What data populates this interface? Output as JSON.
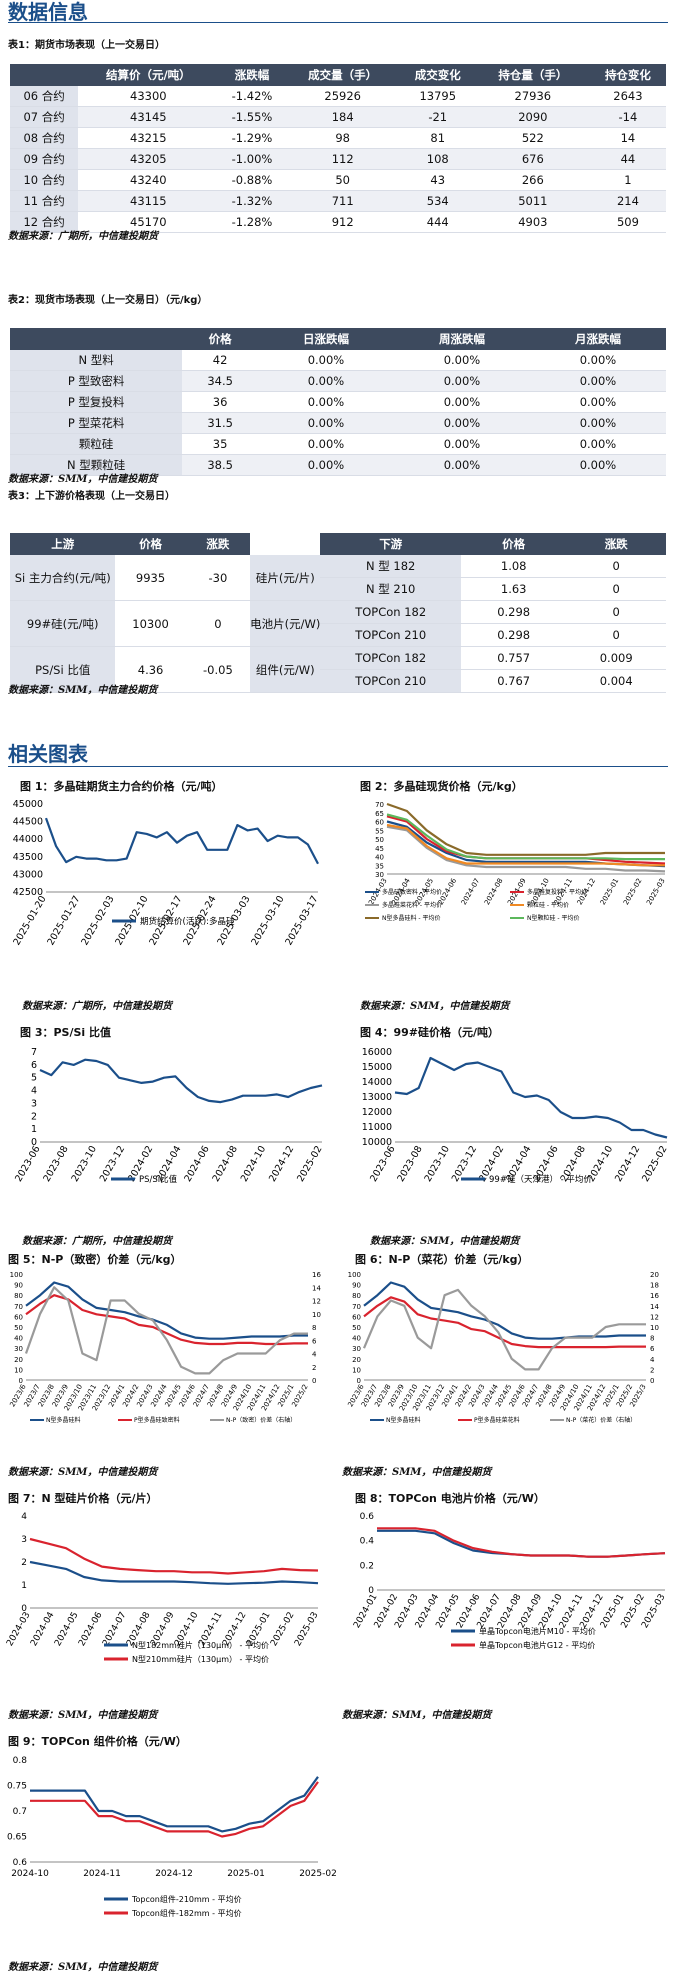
{
  "section1_title": "数据信息",
  "table1": {
    "caption": "表1：期货市场表现（上一交易日）",
    "headers": [
      "",
      "结算价（元/吨）",
      "涨跌幅",
      "成交量（手）",
      "成交变化",
      "持仓量（手）",
      "持仓变化"
    ],
    "rows": [
      [
        "06 合约",
        "43300",
        "-1.42%",
        "25926",
        "13795",
        "27936",
        "2643"
      ],
      [
        "07 合约",
        "43145",
        "-1.55%",
        "184",
        "-21",
        "2090",
        "-14"
      ],
      [
        "08 合约",
        "43215",
        "-1.29%",
        "98",
        "81",
        "522",
        "14"
      ],
      [
        "09 合约",
        "43205",
        "-1.00%",
        "112",
        "108",
        "676",
        "44"
      ],
      [
        "10 合约",
        "43240",
        "-0.88%",
        "50",
        "43",
        "266",
        "1"
      ],
      [
        "11 合约",
        "43115",
        "-1.32%",
        "711",
        "534",
        "5011",
        "214"
      ],
      [
        "12 合约",
        "45170",
        "-1.28%",
        "912",
        "444",
        "4903",
        "509"
      ]
    ],
    "source": "数据来源：广期所，中信建投期货"
  },
  "table2": {
    "caption": "表2：现货市场表现（上一交易日）（元/kg）",
    "headers": [
      "",
      "价格",
      "日涨跌幅",
      "周涨跌幅",
      "月涨跌幅"
    ],
    "rows": [
      [
        "N 型料",
        "42",
        "0.00%",
        "0.00%",
        "0.00%"
      ],
      [
        "P 型致密料",
        "34.5",
        "0.00%",
        "0.00%",
        "0.00%"
      ],
      [
        "P 型复投料",
        "36",
        "0.00%",
        "0.00%",
        "0.00%"
      ],
      [
        "P 型菜花料",
        "31.5",
        "0.00%",
        "0.00%",
        "0.00%"
      ],
      [
        "颗粒硅",
        "35",
        "0.00%",
        "0.00%",
        "0.00%"
      ],
      [
        "N 型颗粒硅",
        "38.5",
        "0.00%",
        "0.00%",
        "0.00%"
      ]
    ],
    "source": "数据来源：SMM，中信建投期货"
  },
  "table3": {
    "caption": "表3：上下游价格表现（上一交易日）",
    "headers": [
      "上游",
      "价格",
      "涨跌",
      "",
      "下游",
      "价格",
      "涨跌"
    ],
    "upstream": [
      {
        "name": "Si 主力合约(元/吨)",
        "price": "9935",
        "change": "-30"
      },
      {
        "name": "99#硅(元/吨)",
        "price": "10300",
        "change": "0"
      },
      {
        "name": "PS/Si 比值",
        "price": "4.36",
        "change": "-0.05"
      }
    ],
    "downstream": [
      {
        "group": "硅片(元/片)",
        "items": [
          [
            "N 型 182",
            "1.08",
            "0"
          ],
          [
            "N 型 210",
            "1.63",
            "0"
          ]
        ]
      },
      {
        "group": "电池片(元/W)",
        "items": [
          [
            "TOPCon 182",
            "0.298",
            "0"
          ],
          [
            "TOPCon 210",
            "0.298",
            "0"
          ]
        ]
      },
      {
        "group": "组件(元/W)",
        "items": [
          [
            "TOPCon 182",
            "0.757",
            "0.009"
          ],
          [
            "TOPCon 210",
            "0.767",
            "0.004"
          ]
        ]
      }
    ],
    "source": "数据来源：SMM，中信建投期货"
  },
  "section2_title": "相关图表",
  "figures": {
    "f1": {
      "title": "图 1：多晶硅期货主力合约价格（元/吨）",
      "source": "数据来源：广期所，中信建投期货"
    },
    "f2": {
      "title": "图 2：多晶硅现货价格（元/kg）",
      "source": "数据来源：SMM，中信建投期货"
    },
    "f3": {
      "title": "图 3：PS/Si 比值",
      "source": "数据来源：广期所，中信建投期货"
    },
    "f4": {
      "title": "图 4：99#硅价格（元/吨）",
      "source": "数据来源：SMM，中信建投期货"
    },
    "f5": {
      "title": "图 5：N-P（致密）价差（元/kg）",
      "source": "数据来源：SMM，中信建投期货"
    },
    "f6": {
      "title": "图 6：N-P（菜花）价差（元/kg）",
      "source": "数据来源：SMM，中信建投期货"
    },
    "f7": {
      "title": "图 7：N 型硅片价格（元/片）",
      "source": "数据来源：SMM，中信建投期货"
    },
    "f8": {
      "title": "图 8：TOPCon 电池片价格（元/W）",
      "source": "数据来源：SMM，中信建投期货"
    },
    "f9": {
      "title": "图 9：TOPCon 组件价格（元/W）",
      "source": "数据来源：SMM，中信建投期货"
    }
  },
  "chart_data": [
    {
      "id": "c1",
      "type": "line",
      "ylim": [
        42500,
        45000
      ],
      "yticks": [
        42500,
        43000,
        43500,
        44000,
        44500,
        45000
      ],
      "xticks": [
        "2025-01-20",
        "2025-01-27",
        "2025-02-03",
        "2025-02-10",
        "2025-02-17",
        "2025-02-24",
        "2025-03-03",
        "2025-03-10",
        "2025-03-17"
      ],
      "series": [
        {
          "name": "期货结算价(活跃):多晶硅",
          "color": "#1b4f8a",
          "values": [
            44600,
            43800,
            43350,
            43500,
            43450,
            43450,
            43400,
            43400,
            43450,
            44200,
            44150,
            44050,
            44200,
            43900,
            44100,
            44200,
            43700,
            43700,
            43700,
            44400,
            44250,
            44300,
            43950,
            44100,
            44050,
            44050,
            43850,
            43300
          ]
        }
      ]
    },
    {
      "id": "c2",
      "type": "line",
      "ylim": [
        30,
        70
      ],
      "yticks": [
        30,
        35,
        40,
        45,
        50,
        55,
        60,
        65,
        70
      ],
      "xticks": [
        "2024-03",
        "2024-04",
        "2024-05",
        "2024-06",
        "2024-07",
        "2024-08",
        "2024-09",
        "2024-10",
        "2024-11",
        "2024-12",
        "2025-01",
        "2025-02",
        "2025-03"
      ],
      "series": [
        {
          "name": "多晶硅致密料 - 平均价",
          "color": "#1b4f8a",
          "values": [
            60,
            57,
            48,
            42,
            38,
            37,
            37,
            37,
            37,
            37,
            37,
            36,
            35.5,
            35,
            34.5
          ]
        },
        {
          "name": "多晶硅复投料 - 平均价",
          "color": "#d9232e",
          "values": [
            63,
            60,
            50,
            43,
            40,
            39,
            39,
            39,
            39,
            39,
            39,
            38,
            37,
            36.5,
            36
          ]
        },
        {
          "name": "多晶硅菜花料 - 平均价",
          "color": "#9a9a9a",
          "values": [
            57,
            55,
            45,
            38,
            35,
            34,
            34,
            34,
            34,
            34,
            33,
            33,
            32,
            32,
            31.5
          ]
        },
        {
          "name": "颗粒硅 - 平均价",
          "color": "#f08a24",
          "values": [
            58,
            56,
            46,
            39,
            36,
            36,
            36,
            36,
            36,
            36,
            36,
            36,
            35.5,
            35,
            35
          ]
        },
        {
          "name": "N型多晶硅料 - 平均价",
          "color": "#8a6a2a",
          "values": [
            70,
            66,
            55,
            47,
            42,
            41,
            41,
            41,
            41,
            41,
            41,
            42,
            42,
            42,
            42
          ]
        },
        {
          "name": "N型颗粒硅 - 平均价",
          "color": "#5cb85c",
          "values": [
            64,
            61,
            52,
            44,
            40,
            39,
            39,
            39,
            39,
            39,
            39,
            39,
            38.5,
            38.5,
            38.5
          ]
        }
      ]
    },
    {
      "id": "c3",
      "type": "line",
      "ylim": [
        0,
        7
      ],
      "yticks": [
        0,
        1,
        2,
        3,
        4,
        5,
        6,
        7
      ],
      "xticks": [
        "2023-06",
        "2023-08",
        "2023-10",
        "2023-12",
        "2024-02",
        "2024-04",
        "2024-06",
        "2024-08",
        "2024-10",
        "2024-12",
        "2025-02"
      ],
      "series": [
        {
          "name": "PS/Si比值",
          "color": "#1b4f8a",
          "values": [
            5.6,
            5.2,
            6.2,
            6.0,
            6.4,
            6.3,
            6.0,
            5.0,
            4.8,
            4.6,
            4.7,
            5.0,
            5.1,
            4.2,
            3.5,
            3.2,
            3.1,
            3.3,
            3.6,
            3.6,
            3.6,
            3.7,
            3.5,
            3.9,
            4.2,
            4.4
          ]
        }
      ]
    },
    {
      "id": "c4",
      "type": "line",
      "ylim": [
        10000,
        16000
      ],
      "yticks": [
        10000,
        11000,
        12000,
        13000,
        14000,
        15000,
        16000
      ],
      "xticks": [
        "2023-06",
        "2023-08",
        "2023-10",
        "2023-12",
        "2024-02",
        "2024-04",
        "2024-06",
        "2024-08",
        "2024-10",
        "2024-12",
        "2025-02"
      ],
      "series": [
        {
          "name": "99#硅（天津港） - 平均价",
          "color": "#1b4f8a",
          "values": [
            13300,
            13200,
            13600,
            15600,
            15200,
            14800,
            15200,
            15300,
            15000,
            14700,
            13300,
            13000,
            13100,
            12800,
            12000,
            11600,
            11600,
            11700,
            11600,
            11300,
            10800,
            10800,
            10500,
            10300
          ]
        }
      ]
    },
    {
      "id": "c5",
      "type": "line",
      "ylim": [
        0,
        100
      ],
      "yticks": [
        0,
        10,
        20,
        30,
        40,
        50,
        60,
        70,
        80,
        90,
        100
      ],
      "y2lim": [
        0,
        16
      ],
      "y2ticks": [
        0,
        2,
        4,
        6,
        8,
        10,
        12,
        14,
        16
      ],
      "xticks": [
        "2023/6",
        "2023/7",
        "2023/8",
        "2023/9",
        "2023/10",
        "2023/11",
        "2023/12",
        "2024/1",
        "2024/2",
        "2024/3",
        "2024/4",
        "2024/5",
        "2024/6",
        "2024/7",
        "2024/8",
        "2024/9",
        "2024/10",
        "2024/11",
        "2024/12",
        "2025/1",
        "2025/2"
      ],
      "series": [
        {
          "name": "N型多晶硅料",
          "color": "#1b4f8a",
          "values": [
            70,
            80,
            92,
            88,
            76,
            68,
            66,
            64,
            60,
            57,
            52,
            44,
            40,
            39,
            39,
            40,
            41,
            41,
            41,
            42,
            42
          ]
        },
        {
          "name": "P型多晶硅致密料",
          "color": "#d9232e",
          "values": [
            62,
            72,
            80,
            76,
            66,
            62,
            60,
            58,
            52,
            50,
            44,
            38,
            35,
            34,
            34,
            35,
            35,
            34,
            34,
            34.5,
            34.5
          ]
        },
        {
          "name": "N-P（致密）价差（右轴）",
          "color": "#9a9a9a",
          "axis": "right",
          "values": [
            4,
            10,
            14,
            12,
            4,
            3,
            12,
            12,
            10,
            9,
            6,
            2,
            1,
            1,
            3,
            4,
            4,
            4,
            6,
            7,
            7
          ]
        }
      ]
    },
    {
      "id": "c6",
      "type": "line",
      "ylim": [
        0,
        100
      ],
      "yticks": [
        0,
        10,
        20,
        30,
        40,
        50,
        60,
        70,
        80,
        90,
        100
      ],
      "y2lim": [
        0,
        20
      ],
      "y2ticks": [
        0,
        2,
        4,
        6,
        8,
        10,
        12,
        14,
        16,
        18,
        20
      ],
      "xticks": [
        "2023/6",
        "2023/7",
        "2023/8",
        "2023/9",
        "2023/10",
        "2023/11",
        "2023/12",
        "2024/1",
        "2024/2",
        "2024/3",
        "2024/4",
        "2024/5",
        "2024/6",
        "2024/7",
        "2024/8",
        "2024/9",
        "2024/10",
        "2024/11",
        "2024/12",
        "2025/1",
        "2025/2",
        "2025/3"
      ],
      "series": [
        {
          "name": "N型多晶硅料",
          "color": "#1b4f8a",
          "values": [
            70,
            80,
            92,
            88,
            76,
            68,
            66,
            64,
            60,
            57,
            52,
            44,
            40,
            39,
            39,
            40,
            41,
            41,
            41,
            42,
            42,
            42
          ]
        },
        {
          "name": "P型多晶硅菜花料",
          "color": "#d9232e",
          "values": [
            60,
            70,
            78,
            74,
            62,
            58,
            56,
            54,
            48,
            46,
            40,
            34,
            32,
            31,
            31,
            31,
            31,
            31,
            31,
            31.5,
            31.5,
            31.5
          ]
        },
        {
          "name": "N-P（菜花）价差（右轴）",
          "color": "#9a9a9a",
          "axis": "right",
          "values": [
            6,
            12,
            15,
            14,
            8,
            6,
            16,
            17,
            14,
            12,
            9,
            4,
            2,
            2,
            6,
            8,
            8,
            8,
            10,
            10.5,
            10.5,
            10.5
          ]
        }
      ]
    },
    {
      "id": "c7",
      "type": "line",
      "ylim": [
        0,
        4
      ],
      "yticks": [
        0,
        1,
        2,
        3,
        4
      ],
      "xticks": [
        "2024-03",
        "2024-04",
        "2024-05",
        "2024-06",
        "2024-07",
        "2024-08",
        "2024-09",
        "2024-10",
        "2024-11",
        "2024-12",
        "2025-01",
        "2025-02",
        "2025-03"
      ],
      "series": [
        {
          "name": "N型182mm硅片（130μm） - 平均价",
          "color": "#1b4f8a",
          "values": [
            2.0,
            1.85,
            1.7,
            1.35,
            1.2,
            1.15,
            1.15,
            1.15,
            1.15,
            1.12,
            1.08,
            1.05,
            1.08,
            1.1,
            1.15,
            1.12,
            1.08
          ]
        },
        {
          "name": "N型210mm硅片（130μm） - 平均价",
          "color": "#d9232e",
          "values": [
            3.0,
            2.8,
            2.6,
            2.15,
            1.8,
            1.7,
            1.65,
            1.6,
            1.6,
            1.55,
            1.55,
            1.5,
            1.55,
            1.6,
            1.7,
            1.65,
            1.63
          ]
        }
      ]
    },
    {
      "id": "c8",
      "type": "line",
      "ylim": [
        0,
        0.6
      ],
      "yticks": [
        0,
        0.2,
        0.4,
        0.6
      ],
      "xticks": [
        "2024-01",
        "2024-02",
        "2024-03",
        "2024-04",
        "2024-05",
        "2024-06",
        "2024-07",
        "2024-08",
        "2024-09",
        "2024-10",
        "2024-11",
        "2024-12",
        "2025-01",
        "2025-02",
        "2025-03"
      ],
      "series": [
        {
          "name": "单晶Topcon电池片M10 - 平均价",
          "color": "#1b4f8a",
          "values": [
            0.48,
            0.48,
            0.48,
            0.46,
            0.38,
            0.32,
            0.3,
            0.29,
            0.28,
            0.28,
            0.28,
            0.27,
            0.27,
            0.28,
            0.29,
            0.298
          ]
        },
        {
          "name": "单晶Topcon电池片G12 - 平均价",
          "color": "#d9232e",
          "values": [
            0.5,
            0.5,
            0.5,
            0.48,
            0.4,
            0.34,
            0.31,
            0.29,
            0.28,
            0.28,
            0.28,
            0.27,
            0.27,
            0.28,
            0.29,
            0.298
          ]
        }
      ]
    },
    {
      "id": "c9",
      "type": "line",
      "ylim": [
        0.6,
        0.8
      ],
      "yticks": [
        0.6,
        0.65,
        0.7,
        0.75,
        0.8
      ],
      "xticks": [
        "2024-10",
        "2024-11",
        "2024-12",
        "2025-01",
        "2025-02"
      ],
      "series": [
        {
          "name": "Topcon组件-210mm - 平均价",
          "color": "#1b4f8a",
          "values": [
            0.74,
            0.74,
            0.74,
            0.74,
            0.74,
            0.7,
            0.7,
            0.69,
            0.69,
            0.68,
            0.67,
            0.67,
            0.67,
            0.67,
            0.66,
            0.665,
            0.675,
            0.68,
            0.7,
            0.72,
            0.73,
            0.767
          ]
        },
        {
          "name": "Topcon组件-182mm - 平均价",
          "color": "#d9232e",
          "values": [
            0.72,
            0.72,
            0.72,
            0.72,
            0.72,
            0.69,
            0.69,
            0.68,
            0.68,
            0.67,
            0.66,
            0.66,
            0.66,
            0.66,
            0.65,
            0.655,
            0.665,
            0.67,
            0.69,
            0.71,
            0.72,
            0.757
          ]
        }
      ]
    }
  ]
}
